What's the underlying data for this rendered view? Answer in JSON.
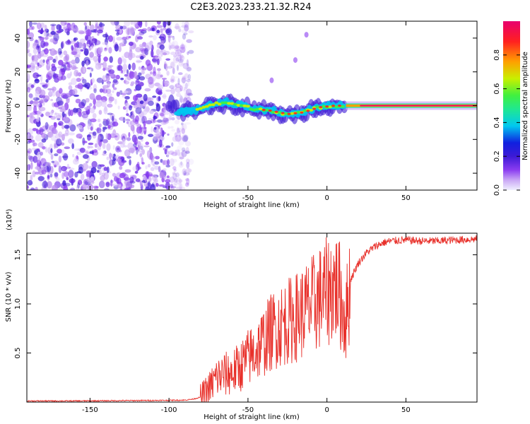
{
  "title": "C2E3.2023.233.21.32.R24",
  "colors": {
    "snr_line": "#e8302a",
    "axis": "#000000",
    "noise": "#8a3cf0",
    "colormap": [
      "#f0f0ff",
      "#c9a6f5",
      "#8a3cf0",
      "#3d1ad6",
      "#1020e0",
      "#00c8f0",
      "#20e890",
      "#40f040",
      "#c8f000",
      "#ffa000",
      "#ff2020",
      "#e8006e"
    ]
  },
  "chart_data": [
    {
      "type": "heatmap",
      "xlabel": "Height of straight line (km)",
      "ylabel": "Frequency (Hz)",
      "xlim": [
        -190,
        95
      ],
      "ylim": [
        -50,
        50
      ],
      "x_ticks": [
        -150,
        -100,
        -50,
        0,
        50
      ],
      "y_ticks": [
        -40,
        -20,
        0,
        20,
        40
      ],
      "grid": false,
      "colorbar": {
        "label": "Normalized spectral amplitude",
        "range": [
          0,
          1
        ],
        "ticks": [
          "0.0",
          "0.2",
          "0.4",
          "0.6",
          "0.8"
        ]
      },
      "regions": {
        "broadband_noise_until_km": -90,
        "signal_start_km": -100,
        "signal_mid_km": 12,
        "signal_track": [
          {
            "x": -95,
            "y": -4
          },
          {
            "x": -85,
            "y": -3
          },
          {
            "x": -75,
            "y": 0
          },
          {
            "x": -65,
            "y": 2
          },
          {
            "x": -55,
            "y": 0
          },
          {
            "x": -45,
            "y": -2
          },
          {
            "x": -35,
            "y": -3
          },
          {
            "x": -25,
            "y": -5
          },
          {
            "x": -15,
            "y": -4
          },
          {
            "x": -5,
            "y": -1
          },
          {
            "x": 5,
            "y": 0
          },
          {
            "x": 15,
            "y": 0
          },
          {
            "x": 50,
            "y": 0
          },
          {
            "x": 95,
            "y": 0
          }
        ],
        "sideband_streak": [
          {
            "x": -35,
            "y": 15
          },
          {
            "x": -20,
            "y": 27
          },
          {
            "x": -13,
            "y": 42
          }
        ]
      }
    },
    {
      "type": "line",
      "xlabel": "Height of straight line (km)",
      "ylabel": "SNR (10 * v/v)",
      "y_multiplier": "(x10⁴)",
      "xlim": [
        -190,
        95
      ],
      "ylim": [
        0,
        1.72
      ],
      "x_ticks": [
        -150,
        -100,
        -50,
        0,
        50
      ],
      "y_ticks": [
        0.5,
        1.0,
        1.5
      ],
      "y_tick_labels": [
        "0.5",
        "1.0",
        "1.5"
      ],
      "grid": false,
      "series": [
        {
          "points": [
            [
              -190,
              0.012
            ],
            [
              -160,
              0.012
            ],
            [
              -130,
              0.015
            ],
            [
              -100,
              0.018
            ],
            [
              -90,
              0.02
            ],
            [
              -85,
              0.03
            ],
            [
              -80,
              0.05
            ],
            [
              -78,
              0.08
            ],
            [
              -75,
              0.13
            ],
            [
              -72,
              0.2
            ],
            [
              -70,
              0.25
            ],
            [
              -65,
              0.28
            ],
            [
              -60,
              0.3
            ],
            [
              -55,
              0.36
            ],
            [
              -50,
              0.45
            ],
            [
              -45,
              0.52
            ],
            [
              -40,
              0.62
            ],
            [
              -35,
              0.72
            ],
            [
              -30,
              0.78
            ],
            [
              -25,
              0.82
            ],
            [
              -20,
              0.86
            ],
            [
              -15,
              0.92
            ],
            [
              -10,
              0.98
            ],
            [
              -5,
              1.05
            ],
            [
              0,
              1.12
            ],
            [
              5,
              1.2
            ],
            [
              8,
              1.1
            ],
            [
              10,
              0.95
            ],
            [
              12,
              0.85
            ],
            [
              15,
              1.25
            ],
            [
              20,
              1.42
            ],
            [
              25,
              1.52
            ],
            [
              30,
              1.58
            ],
            [
              35,
              1.62
            ],
            [
              40,
              1.64
            ],
            [
              50,
              1.65
            ],
            [
              60,
              1.64
            ],
            [
              70,
              1.64
            ],
            [
              80,
              1.65
            ],
            [
              95,
              1.66
            ]
          ]
        }
      ]
    }
  ]
}
